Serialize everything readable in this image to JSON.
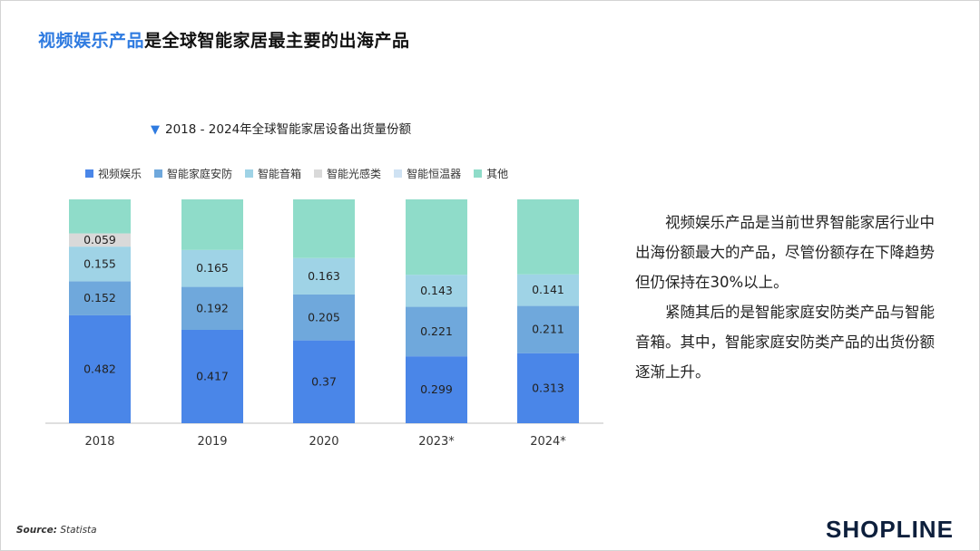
{
  "header": {
    "title_highlight": "视频娱乐产品",
    "title_rest": "是全球智能家居最主要的出海产品"
  },
  "chart_data": {
    "type": "bar",
    "stacked": true,
    "title": "2018 - 2024年全球智能家居设备出货量份额",
    "categories": [
      "2018",
      "2019",
      "2020",
      "2023*",
      "2024*"
    ],
    "ylim": [
      0,
      1
    ],
    "legend_position": "top",
    "series": [
      {
        "name": "视频娱乐",
        "color": "#4a86e8",
        "values": [
          0.482,
          0.417,
          0.37,
          0.299,
          0.313
        ]
      },
      {
        "name": "智能家庭安防",
        "color": "#6fa8dc",
        "values": [
          0.152,
          0.192,
          0.205,
          0.221,
          0.211
        ]
      },
      {
        "name": "智能音箱",
        "color": "#9fd3e6",
        "values": [
          0.155,
          0.165,
          0.163,
          0.143,
          0.141
        ]
      },
      {
        "name": "智能光感类",
        "color": "#d9d9d9",
        "values": [
          0.059,
          null,
          null,
          null,
          null
        ]
      },
      {
        "name": "智能恒温器",
        "color": "#cfe2f3",
        "values": [
          null,
          null,
          null,
          null,
          null
        ]
      },
      {
        "name": "其他",
        "color": "#8fdcc9",
        "values": [
          null,
          null,
          null,
          null,
          null
        ]
      }
    ]
  },
  "description": {
    "p1": "视频娱乐产品是当前世界智能家居行业中出海份额最大的产品，尽管份额存在下降趋势但仍保持在30%以上。",
    "p2": "紧随其后的是智能家庭安防类产品与智能音箱。其中，智能家庭安防类产品的出货份额逐渐上升。"
  },
  "footer": {
    "source_label": "Source:",
    "source_value": "Statista",
    "logo_text": "SHOPLINE"
  }
}
